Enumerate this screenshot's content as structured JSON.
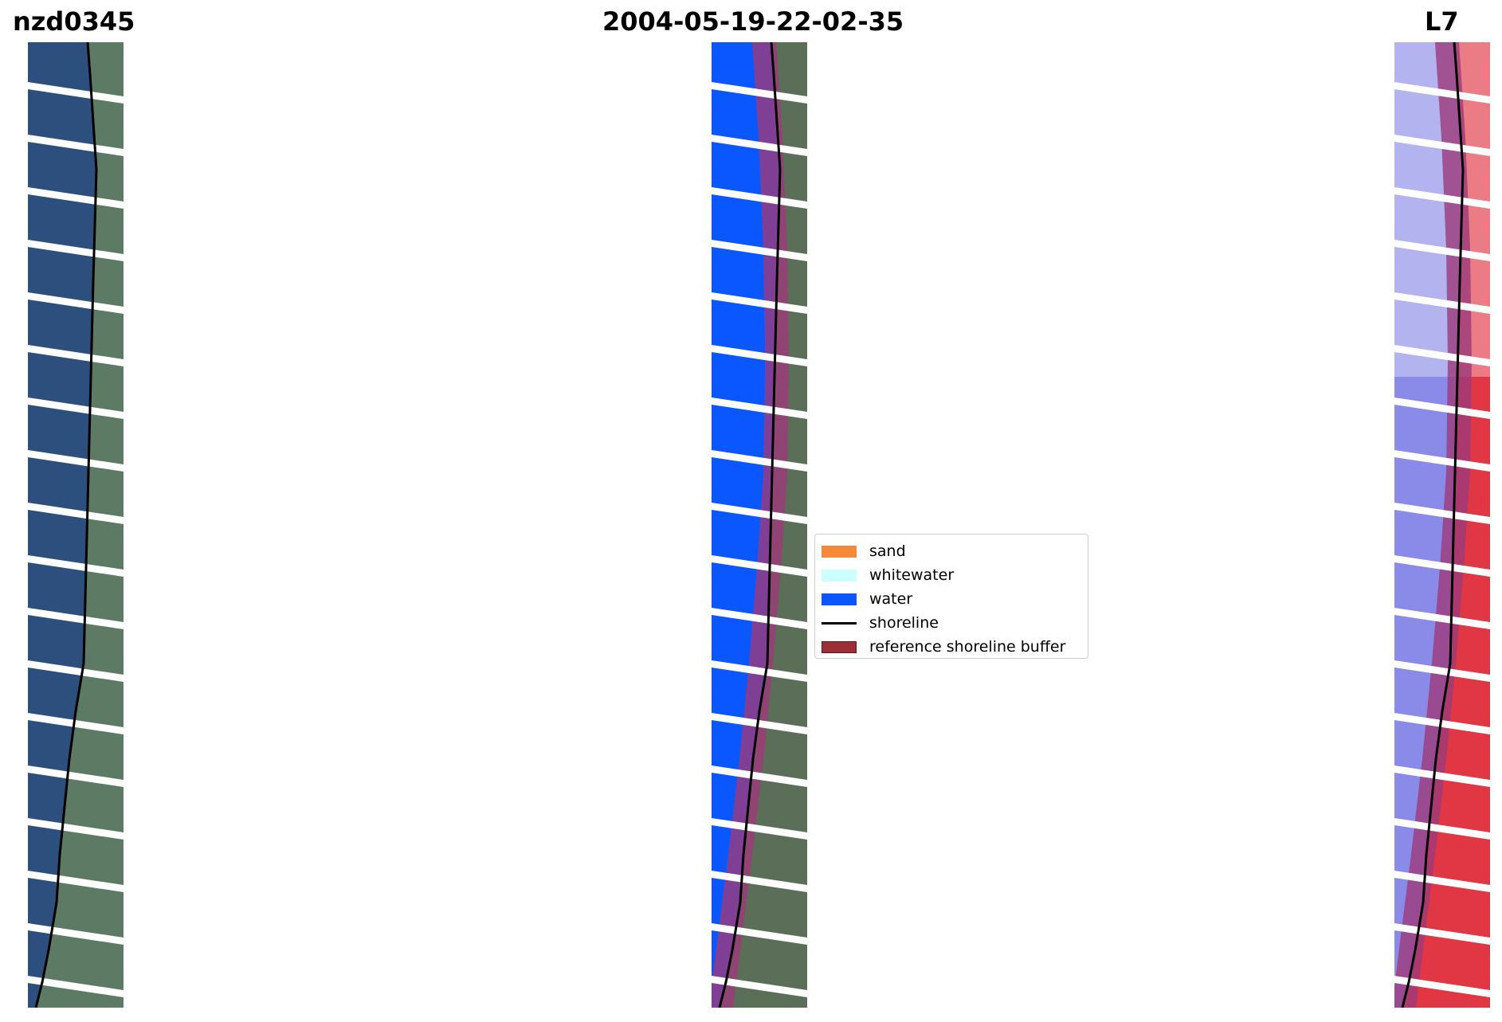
{
  "titles": {
    "site": "nzd0345",
    "date": "2004-05-19-22-02-35",
    "satellite": "L7"
  },
  "legend": [
    {
      "label": "sand",
      "color": "#f5893a",
      "kind": "patch"
    },
    {
      "label": "whitewater",
      "color": "#ccffff",
      "kind": "patch"
    },
    {
      "label": "water",
      "color": "#0a56ff",
      "kind": "patch"
    },
    {
      "label": "shoreline",
      "color": "#000000",
      "kind": "line"
    },
    {
      "label": "reference shoreline buffer",
      "color": "#9c2f35",
      "kind": "patch-outline"
    }
  ],
  "colors": {
    "rgb_ocean": "#2d4f7e",
    "rgb_land": "#5c7a64",
    "class_water": "#0a56ff",
    "class_land": "#5a6e58",
    "buffer": "#9c3a7a",
    "index_water": "#8a8ae8",
    "index_land": "#f02828",
    "stripe_gap": "#ffffff"
  }
}
